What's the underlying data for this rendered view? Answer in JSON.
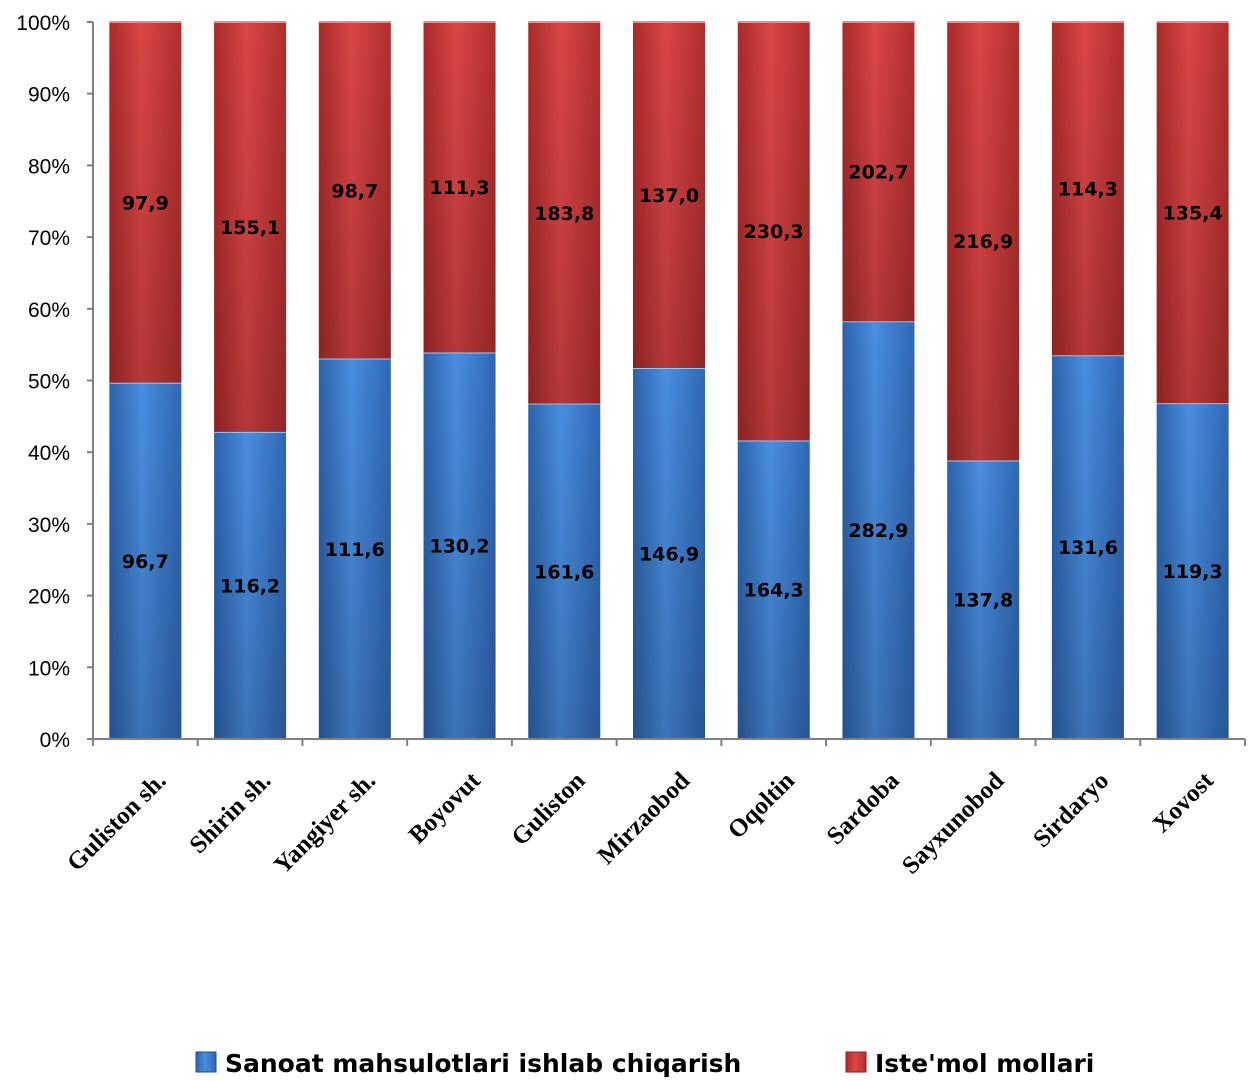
{
  "chart_data": {
    "type": "bar",
    "stacking": "percent",
    "categories": [
      "Guliston sh.",
      "Shirin sh.",
      "Yangiyer sh.",
      "Boyovut",
      "Guliston",
      "Mirzaobod",
      "Oqoltin",
      "Sardoba",
      "Sayxunobod",
      "Sirdaryo",
      "Xovost"
    ],
    "series": [
      {
        "name": "Sanoat mahsulotlari ishlab chiqarish",
        "color": "#3b7dd0",
        "values": [
          96.7,
          116.2,
          111.6,
          130.2,
          161.6,
          146.9,
          164.3,
          282.9,
          137.8,
          131.6,
          119.3
        ],
        "labels": [
          "96,7",
          "116,2",
          "111,6",
          "130,2",
          "161,6",
          "146,9",
          "164,3",
          "282,9",
          "137,8",
          "131,6",
          "119,3"
        ]
      },
      {
        "name": "Iste'mol mollari",
        "color": "#d23c3c",
        "values": [
          97.9,
          155.1,
          98.7,
          111.3,
          183.8,
          137.0,
          230.3,
          202.7,
          216.9,
          114.3,
          135.4
        ],
        "labels": [
          "97,9",
          "155,1",
          "98,7",
          "111,3",
          "183,8",
          "137,0",
          "230,3",
          "202,7",
          "216,9",
          "114,3",
          "135,4"
        ]
      }
    ],
    "yticks": [
      "0%",
      "10%",
      "20%",
      "30%",
      "40%",
      "50%",
      "60%",
      "70%",
      "80%",
      "90%",
      "100%"
    ],
    "ylim": [
      0,
      100
    ],
    "grid": false,
    "legend_position": "bottom"
  }
}
